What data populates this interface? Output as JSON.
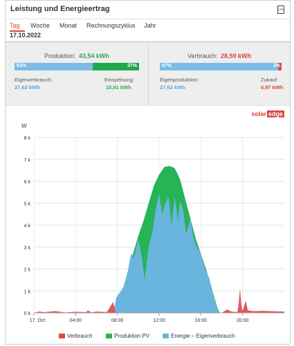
{
  "header": {
    "title": "Leistung und Energieertrag",
    "csv_icon": "csv-icon"
  },
  "tabs": [
    {
      "label": "Tag",
      "active": true
    },
    {
      "label": "Woche",
      "active": false
    },
    {
      "label": "Monat",
      "active": false
    },
    {
      "label": "Rechnungszyklus",
      "active": false
    },
    {
      "label": "Jahr",
      "active": false
    }
  ],
  "date": "17.10.2022",
  "production": {
    "label": "Produktion:",
    "value": "43,54 kWh",
    "self_pct": "63%",
    "feed_pct": "37%",
    "self_fraction": 0.63,
    "self_label": "Eigenverbrauch:",
    "self_value": "27,62 kWh",
    "feed_label": "Einspeisung:",
    "feed_value": "15,91 kWh"
  },
  "consumption": {
    "label": "Verbrauch:",
    "value": "28,59 kWh",
    "self_pct": "97%",
    "import_pct": "3%",
    "self_fraction": 0.97,
    "self_label": "Eigenproduktion:",
    "self_value": "27,62 kWh",
    "import_label": "Zukauf:",
    "import_value": "0,97 kWh"
  },
  "brand": {
    "text": "solar",
    "edge": "edge"
  },
  "colors": {
    "red": "#e04545",
    "green": "#27b457",
    "blue": "#6ab5dd"
  },
  "chart_data": {
    "type": "area",
    "ylabel": "W",
    "ylim": [
      0,
      8000
    ],
    "y_ticks": [
      "0 k",
      "1 k",
      "2 k",
      "3 k",
      "4 k",
      "5 k",
      "6 k",
      "7 k",
      "8 k"
    ],
    "x_ticks": [
      "17. Oct",
      "04:00",
      "08:00",
      "12:00",
      "16:00",
      "20:00"
    ],
    "x_range_hours": [
      0,
      24
    ],
    "legend_position": "bottom",
    "series": [
      {
        "name": "Verbrauch",
        "color": "#e04545",
        "points": [
          [
            0,
            0
          ],
          [
            0.5,
            60
          ],
          [
            1,
            30
          ],
          [
            2,
            80
          ],
          [
            3,
            20
          ],
          [
            4,
            50
          ],
          [
            5,
            30
          ],
          [
            5.2,
            110
          ],
          [
            5.5,
            20
          ],
          [
            6,
            60
          ],
          [
            7,
            40
          ],
          [
            7.6,
            500
          ],
          [
            7.8,
            60
          ],
          [
            8,
            0
          ],
          [
            17.6,
            0
          ],
          [
            18,
            0
          ],
          [
            18.5,
            150
          ],
          [
            19,
            50
          ],
          [
            19.5,
            40
          ],
          [
            19.6,
            300
          ],
          [
            19.75,
            1100
          ],
          [
            19.9,
            300
          ],
          [
            20,
            80
          ],
          [
            20.3,
            550
          ],
          [
            20.5,
            120
          ],
          [
            21,
            80
          ],
          [
            22,
            90
          ],
          [
            23,
            70
          ],
          [
            24,
            60
          ]
        ]
      },
      {
        "name": "Produktion PV",
        "color": "#27b457",
        "points": [
          [
            7.4,
            0
          ],
          [
            7.8,
            150
          ],
          [
            8.2,
            700
          ],
          [
            8.6,
            1200
          ],
          [
            9,
            1900
          ],
          [
            9.5,
            2700
          ],
          [
            10,
            3500
          ],
          [
            10.5,
            4200
          ],
          [
            11,
            5000
          ],
          [
            11.5,
            5800
          ],
          [
            12,
            6300
          ],
          [
            12.5,
            6650
          ],
          [
            13,
            6700
          ],
          [
            13.5,
            6600
          ],
          [
            14,
            6100
          ],
          [
            14.5,
            5200
          ],
          [
            15,
            4300
          ],
          [
            15.5,
            3400
          ],
          [
            16,
            2700
          ],
          [
            16.5,
            2000
          ],
          [
            17,
            1200
          ],
          [
            17.3,
            700
          ],
          [
            17.6,
            200
          ],
          [
            17.8,
            0
          ]
        ]
      },
      {
        "name": "Energie – Eigenverbrauch",
        "color": "#6ab5dd",
        "points": [
          [
            7.6,
            0
          ],
          [
            7.9,
            700
          ],
          [
            8.2,
            900
          ],
          [
            8.6,
            1200
          ],
          [
            9,
            1900
          ],
          [
            9.3,
            2700
          ],
          [
            9.6,
            2500
          ],
          [
            10,
            3400
          ],
          [
            10.4,
            2400
          ],
          [
            10.6,
            1500
          ],
          [
            11,
            3000
          ],
          [
            11.4,
            3800
          ],
          [
            11.7,
            4800
          ],
          [
            12,
            5400
          ],
          [
            12.3,
            4500
          ],
          [
            12.6,
            5000
          ],
          [
            12.9,
            5300
          ],
          [
            13.2,
            4000
          ],
          [
            13.5,
            5300
          ],
          [
            13.8,
            4200
          ],
          [
            14,
            5100
          ],
          [
            14.3,
            4700
          ],
          [
            14.6,
            3600
          ],
          [
            15,
            4300
          ],
          [
            15.3,
            3400
          ],
          [
            15.6,
            3000
          ],
          [
            16,
            2700
          ],
          [
            16.4,
            2000
          ],
          [
            16.8,
            1600
          ],
          [
            17.2,
            800
          ],
          [
            17.5,
            300
          ],
          [
            17.7,
            0
          ]
        ]
      }
    ]
  }
}
